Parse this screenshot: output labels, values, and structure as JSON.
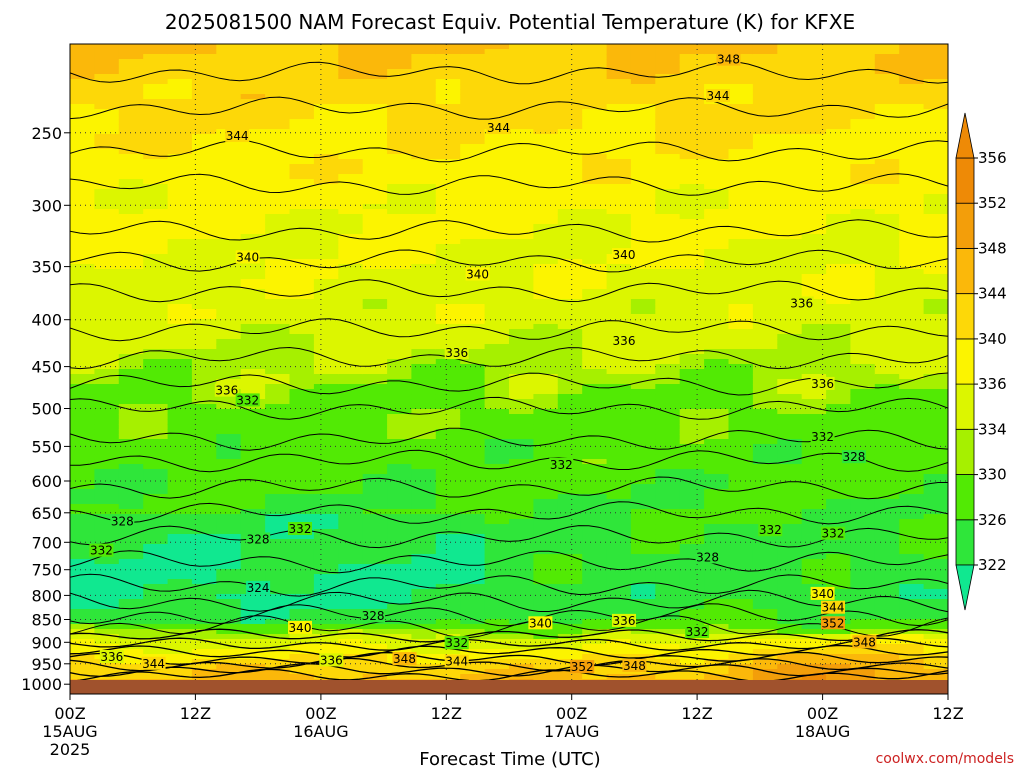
{
  "chart_data": {
    "type": "heatmap",
    "title": "2025081500 NAM Forecast Equiv. Potential Temperature (K) for KFXE",
    "xlabel": "Forecast Time (UTC)",
    "ylabel": "",
    "units": "K",
    "y_scale": "log",
    "y_axis": {
      "direction": "descending-up",
      "ylim": [
        1025,
        200
      ],
      "ticks": [
        250,
        300,
        350,
        400,
        450,
        500,
        550,
        600,
        650,
        700,
        750,
        800,
        850,
        900,
        950,
        1000
      ]
    },
    "x_axis": {
      "xlim_hours": [
        0,
        84
      ],
      "ticks": [
        {
          "hour": 0,
          "label": "00Z",
          "date": "15AUG",
          "year": "2025"
        },
        {
          "hour": 12,
          "label": "12Z",
          "date": "",
          "year": ""
        },
        {
          "hour": 24,
          "label": "00Z",
          "date": "16AUG",
          "year": ""
        },
        {
          "hour": 36,
          "label": "12Z",
          "date": "",
          "year": ""
        },
        {
          "hour": 48,
          "label": "00Z",
          "date": "17AUG",
          "year": ""
        },
        {
          "hour": 60,
          "label": "12Z",
          "date": "",
          "year": ""
        },
        {
          "hour": 72,
          "label": "00Z",
          "date": "18AUG",
          "year": ""
        },
        {
          "hour": 84,
          "label": "12Z",
          "date": "",
          "year": ""
        }
      ]
    },
    "grid": true,
    "colorbar": {
      "position": "right",
      "levels": [
        322,
        326,
        330,
        334,
        336,
        340,
        344,
        348,
        352,
        356
      ],
      "colors": [
        "#10e890",
        "#2fe63a",
        "#52ea04",
        "#a6f000",
        "#dcf600",
        "#fcf400",
        "#fdd808",
        "#fbb80a",
        "#f39e0a",
        "#ee8a06"
      ]
    },
    "field_profile": [
      {
        "p": 1000,
        "theta_e": 350
      },
      {
        "p": 950,
        "theta_e": 346
      },
      {
        "p": 900,
        "theta_e": 338
      },
      {
        "p": 850,
        "theta_e": 330
      },
      {
        "p": 800,
        "theta_e": 328
      },
      {
        "p": 700,
        "theta_e": 329
      },
      {
        "p": 600,
        "theta_e": 331
      },
      {
        "p": 500,
        "theta_e": 333
      },
      {
        "p": 400,
        "theta_e": 338
      },
      {
        "p": 300,
        "theta_e": 341
      },
      {
        "p": 250,
        "theta_e": 344
      },
      {
        "p": 200,
        "theta_e": 348
      }
    ],
    "contour_labels": [
      {
        "value": "348",
        "hour": 63,
        "p": 208
      },
      {
        "value": "344",
        "hour": 16,
        "p": 252
      },
      {
        "value": "344",
        "hour": 41,
        "p": 247
      },
      {
        "value": "344",
        "hour": 62,
        "p": 228
      },
      {
        "value": "340",
        "hour": 17,
        "p": 342
      },
      {
        "value": "340",
        "hour": 39,
        "p": 357
      },
      {
        "value": "340",
        "hour": 53,
        "p": 340
      },
      {
        "value": "336",
        "hour": 37,
        "p": 435
      },
      {
        "value": "336",
        "hour": 53,
        "p": 422
      },
      {
        "value": "336",
        "hour": 70,
        "p": 384
      },
      {
        "value": "336",
        "hour": 15,
        "p": 478
      },
      {
        "value": "336",
        "hour": 72,
        "p": 470
      },
      {
        "value": "332",
        "hour": 17,
        "p": 490
      },
      {
        "value": "332",
        "hour": 47,
        "p": 576
      },
      {
        "value": "332",
        "hour": 72,
        "p": 537
      },
      {
        "value": "328",
        "hour": 75,
        "p": 565
      },
      {
        "value": "328",
        "hour": 5,
        "p": 664
      },
      {
        "value": "332",
        "hour": 3,
        "p": 715
      },
      {
        "value": "328",
        "hour": 18,
        "p": 695
      },
      {
        "value": "332",
        "hour": 22,
        "p": 677
      },
      {
        "value": "332",
        "hour": 67,
        "p": 679
      },
      {
        "value": "332",
        "hour": 73,
        "p": 685
      },
      {
        "value": "328",
        "hour": 61,
        "p": 727
      },
      {
        "value": "324",
        "hour": 18,
        "p": 785
      },
      {
        "value": "340",
        "hour": 72,
        "p": 797
      },
      {
        "value": "344",
        "hour": 73,
        "p": 825
      },
      {
        "value": "328",
        "hour": 29,
        "p": 843
      },
      {
        "value": "336",
        "hour": 53,
        "p": 853
      },
      {
        "value": "340",
        "hour": 45,
        "p": 858
      },
      {
        "value": "352",
        "hour": 73,
        "p": 858
      },
      {
        "value": "340",
        "hour": 22,
        "p": 868
      },
      {
        "value": "332",
        "hour": 60,
        "p": 877
      },
      {
        "value": "332",
        "hour": 37,
        "p": 902
      },
      {
        "value": "348",
        "hour": 76,
        "p": 900
      },
      {
        "value": "336",
        "hour": 4,
        "p": 934
      },
      {
        "value": "344",
        "hour": 8,
        "p": 950
      },
      {
        "value": "336",
        "hour": 25,
        "p": 942
      },
      {
        "value": "348",
        "hour": 32,
        "p": 939
      },
      {
        "value": "344",
        "hour": 37,
        "p": 945
      },
      {
        "value": "352",
        "hour": 49,
        "p": 958
      },
      {
        "value": "348",
        "hour": 54,
        "p": 955
      }
    ]
  },
  "credit": "coolwx.com/models"
}
